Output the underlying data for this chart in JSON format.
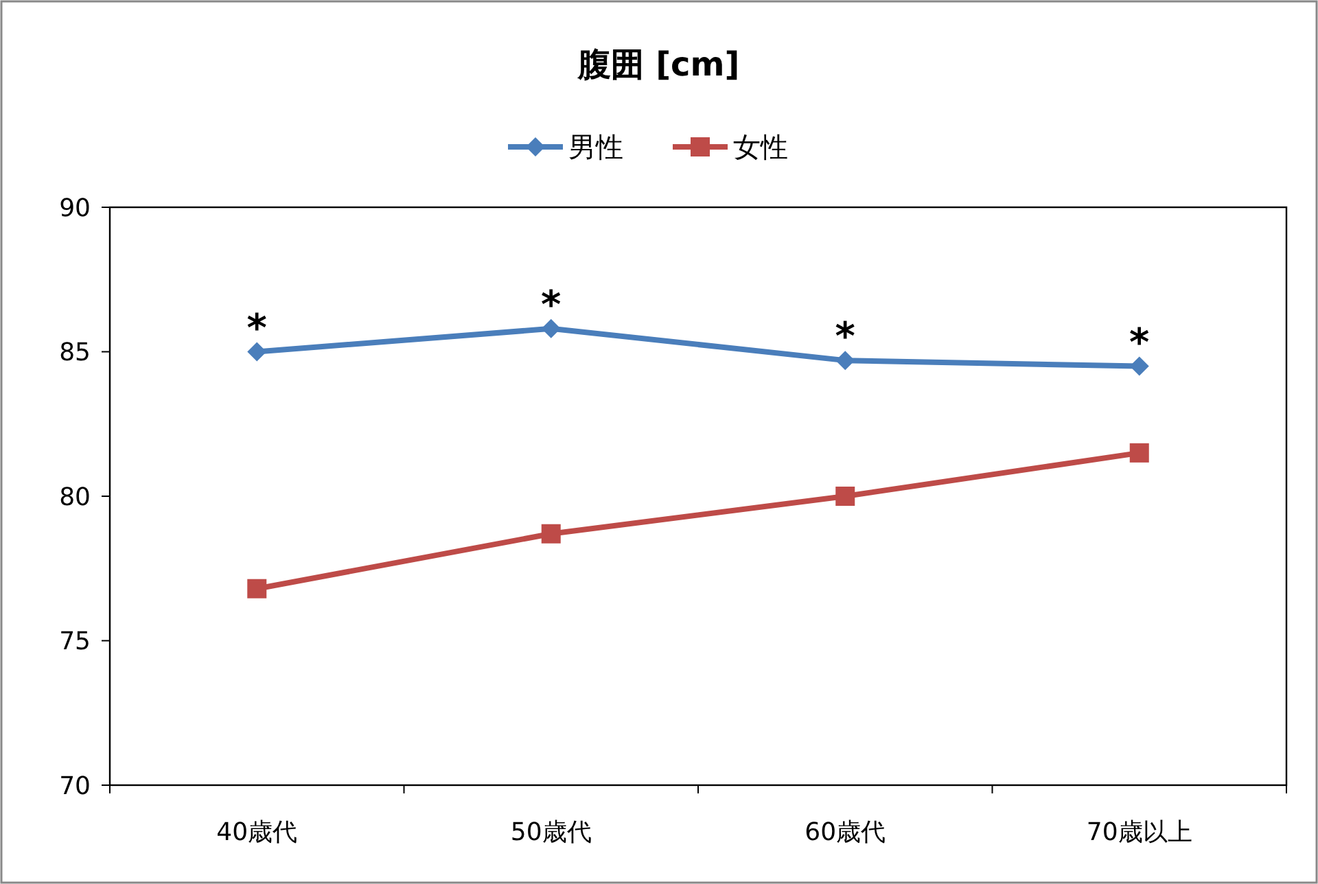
{
  "chart_data": {
    "type": "line",
    "title": "腹囲 [cm]",
    "categories": [
      "40歳代",
      "50歳代",
      "60歳代",
      "70歳以上"
    ],
    "series": [
      {
        "name": "男性",
        "color": "#4a7ebb",
        "marker": "diamond",
        "values": [
          85.0,
          85.8,
          84.7,
          84.5
        ]
      },
      {
        "name": "女性",
        "color": "#be4b48",
        "marker": "square",
        "values": [
          76.8,
          78.7,
          80.0,
          81.5
        ]
      }
    ],
    "ylim": [
      70,
      90
    ],
    "yticks": [
      70,
      75,
      80,
      85,
      90
    ],
    "legend": "top",
    "grid": false,
    "annotations": [
      {
        "text": "*",
        "x": "40歳代",
        "y": 85.0
      },
      {
        "text": "*",
        "x": "50歳代",
        "y": 85.8
      },
      {
        "text": "*",
        "x": "60歳代",
        "y": 84.7
      },
      {
        "text": "*",
        "x": "70歳以上",
        "y": 84.5
      }
    ]
  }
}
